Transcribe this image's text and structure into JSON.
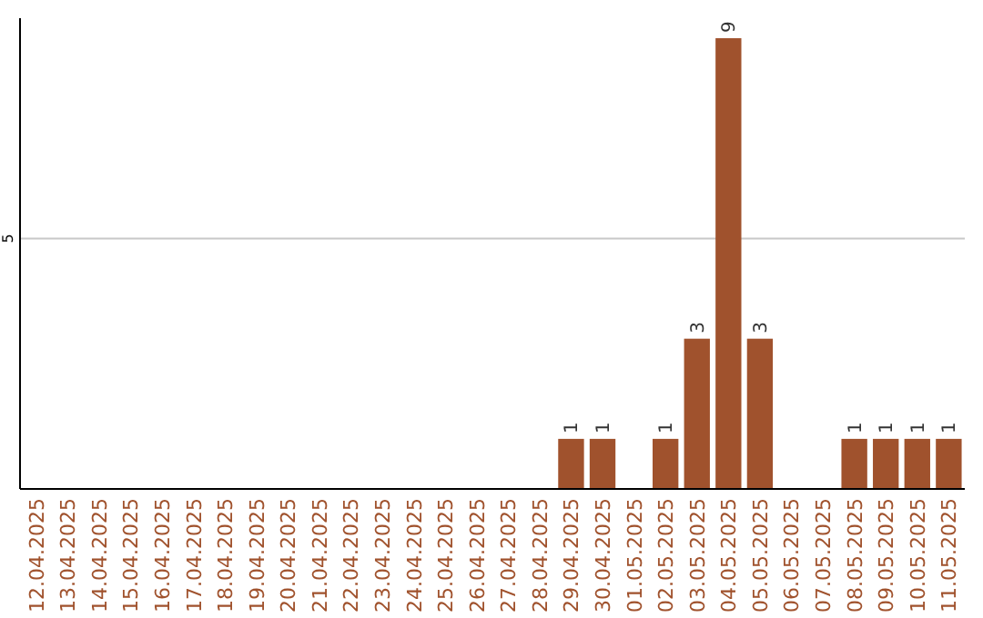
{
  "chart_data": {
    "type": "bar",
    "categories": [
      "12.04.2025",
      "13.04.2025",
      "14.04.2025",
      "15.04.2025",
      "16.04.2025",
      "17.04.2025",
      "18.04.2025",
      "19.04.2025",
      "20.04.2025",
      "21.04.2025",
      "22.04.2025",
      "23.04.2025",
      "24.04.2025",
      "25.04.2025",
      "26.04.2025",
      "27.04.2025",
      "28.04.2025",
      "29.04.2025",
      "30.04.2025",
      "01.05.2025",
      "02.05.2025",
      "03.05.2025",
      "04.05.2025",
      "05.05.2025",
      "06.05.2025",
      "07.05.2025",
      "08.05.2025",
      "09.05.2025",
      "10.05.2025",
      "11.05.2025"
    ],
    "values": [
      null,
      null,
      null,
      null,
      null,
      null,
      null,
      null,
      null,
      null,
      null,
      null,
      null,
      null,
      null,
      null,
      null,
      1,
      1,
      null,
      1,
      3,
      9,
      3,
      null,
      null,
      1,
      1,
      1,
      1
    ],
    "data_labels": true,
    "color": "#a0522d",
    "ylim": [
      0,
      9.4
    ],
    "yticks": [
      5
    ],
    "grid": "y"
  }
}
